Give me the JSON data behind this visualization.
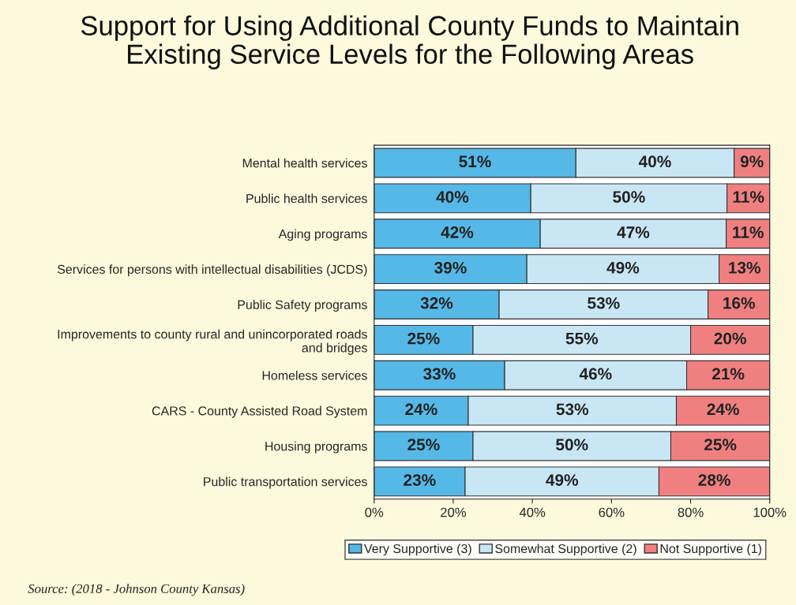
{
  "chart_data": {
    "type": "bar",
    "orientation": "horizontal",
    "stacked": true,
    "title": "Support for Using Additional County Funds to Maintain\nExisting Service Levels for the Following Areas",
    "categories": [
      "Mental health services",
      "Public health services",
      "Aging programs",
      "Services for persons with intellectual disabilities (JCDS)",
      "Public Safety programs",
      "Improvements to county rural and unincorporated roads\nand bridges",
      "Homeless services",
      "CARS - County Assisted Road System",
      "Housing programs",
      "Public transportation services"
    ],
    "series": [
      {
        "name": "Very Supportive (3)",
        "color": "#56b8e6",
        "values": [
          51,
          39.6,
          42,
          38.6,
          31.6,
          25,
          33,
          23.8,
          25,
          23
        ],
        "value_labels": [
          "51%",
          "40%",
          "42%",
          "39%",
          "32%",
          "25%",
          "33%",
          "24%",
          "25%",
          "23%"
        ]
      },
      {
        "name": "Somewhat Supportive (2)",
        "color": "#c9e6f5",
        "values": [
          40,
          49.6,
          47,
          48.6,
          52.8,
          55,
          46,
          52.6,
          50,
          49
        ],
        "value_labels": [
          "40%",
          "50%",
          "47%",
          "49%",
          "53%",
          "55%",
          "46%",
          "53%",
          "50%",
          "49%"
        ]
      },
      {
        "name": "Not Supportive (1)",
        "color": "#f08080",
        "values": [
          9,
          10.8,
          11,
          12.8,
          15.6,
          20,
          21,
          23.6,
          25,
          28
        ],
        "value_labels": [
          "9%",
          "11%",
          "11%",
          "13%",
          "16%",
          "20%",
          "21%",
          "24%",
          "25%",
          "28%"
        ]
      }
    ],
    "xlim": [
      0,
      100
    ],
    "xticks": [
      {
        "value": 0,
        "label": "0%"
      },
      {
        "value": 20,
        "label": "20%"
      },
      {
        "value": 40,
        "label": "40%"
      },
      {
        "value": 60,
        "label": "60%"
      },
      {
        "value": 80,
        "label": "80%"
      },
      {
        "value": 100,
        "label": "100%"
      }
    ],
    "grid": false,
    "legend": "bottom",
    "annotations": [
      "Source: (2018 - Johnson County Kansas)"
    ]
  }
}
